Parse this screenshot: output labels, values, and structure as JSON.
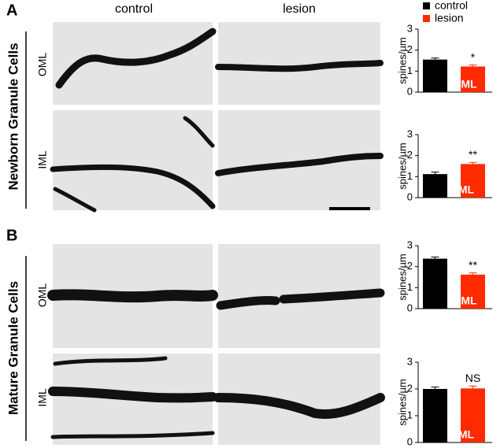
{
  "panels": [
    {
      "letter": "A",
      "group": "Newborn Granule Cells"
    },
    {
      "letter": "B",
      "group": "Mature Granule Cells"
    }
  ],
  "column_headers": [
    "control",
    "lesion"
  ],
  "row_labels": [
    "OML",
    "IML",
    "OML",
    "IML"
  ],
  "chart_data": [
    {
      "type": "bar",
      "ylabel": "spines/µm",
      "label": "OML",
      "annotation": "*",
      "ylim": [
        0,
        3
      ],
      "yticks": [
        0,
        1,
        2,
        3
      ],
      "series": [
        {
          "name": "control",
          "color": "#000000",
          "values": [
            1.55
          ],
          "errors": [
            0.07
          ]
        },
        {
          "name": "lesion",
          "color": "#ff2a00",
          "values": [
            1.22
          ],
          "errors": [
            0.07
          ]
        }
      ]
    },
    {
      "type": "bar",
      "ylabel": "spines/µm",
      "label": "IML",
      "annotation": "**",
      "ylim": [
        0,
        3
      ],
      "yticks": [
        0,
        1,
        2,
        3
      ],
      "series": [
        {
          "name": "control",
          "color": "#000000",
          "values": [
            1.12
          ],
          "errors": [
            0.1
          ]
        },
        {
          "name": "lesion",
          "color": "#ff2a00",
          "values": [
            1.6
          ],
          "errors": [
            0.08
          ]
        }
      ]
    },
    {
      "type": "bar",
      "ylabel": "spines/µm",
      "label": "OML",
      "annotation": "**",
      "ylim": [
        0,
        3
      ],
      "yticks": [
        0,
        1,
        2,
        3
      ],
      "series": [
        {
          "name": "control",
          "color": "#000000",
          "values": [
            2.38
          ],
          "errors": [
            0.08
          ]
        },
        {
          "name": "lesion",
          "color": "#ff2a00",
          "values": [
            1.62
          ],
          "errors": [
            0.08
          ]
        }
      ]
    },
    {
      "type": "bar",
      "ylabel": "spines/µm",
      "label": "IML",
      "annotation": "NS",
      "ylim": [
        0,
        3
      ],
      "yticks": [
        0,
        1,
        2,
        3
      ],
      "series": [
        {
          "name": "control",
          "color": "#000000",
          "values": [
            2.0
          ],
          "errors": [
            0.07
          ]
        },
        {
          "name": "lesion",
          "color": "#ff2a00",
          "values": [
            2.02
          ],
          "errors": [
            0.09
          ]
        }
      ]
    }
  ]
}
